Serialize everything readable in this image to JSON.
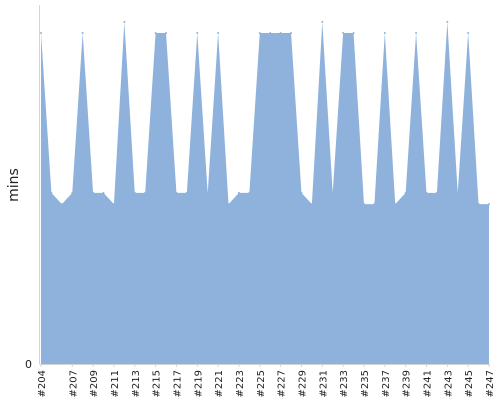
{
  "chart_data": {
    "type": "area",
    "title": "",
    "xlabel": "",
    "ylabel": "mins",
    "ylim": [
      0,
      6.4
    ],
    "yticks": [
      0
    ],
    "grid": false,
    "legend": "none",
    "color": "#8fb2dc",
    "x": [
      "#204",
      "#205",
      "#206",
      "#207",
      "#208",
      "#209",
      "#210",
      "#211",
      "#212",
      "#213",
      "#214",
      "#215",
      "#216",
      "#217",
      "#218",
      "#219",
      "#220",
      "#221",
      "#222",
      "#223",
      "#224",
      "#225",
      "#226",
      "#227",
      "#228",
      "#229",
      "#230",
      "#231",
      "#232",
      "#233",
      "#234",
      "#235",
      "#236",
      "#237",
      "#238",
      "#239",
      "#240",
      "#241",
      "#242",
      "#243",
      "#244",
      "#245",
      "#246",
      "#247"
    ],
    "xtick_labels": [
      "#204",
      "#207",
      "#209",
      "#211",
      "#213",
      "#215",
      "#217",
      "#219",
      "#221",
      "#223",
      "#225",
      "#227",
      "#229",
      "#231",
      "#233",
      "#235",
      "#237",
      "#239",
      "#241",
      "#243",
      "#245",
      "#247"
    ],
    "values": [
      5.9,
      3.05,
      2.85,
      3.05,
      5.9,
      3.05,
      3.05,
      2.85,
      6.1,
      3.05,
      3.05,
      5.9,
      5.9,
      3.05,
      3.05,
      5.9,
      3.05,
      5.9,
      2.85,
      3.05,
      3.05,
      5.9,
      5.9,
      5.9,
      5.9,
      3.05,
      2.85,
      6.1,
      3.05,
      5.9,
      5.9,
      2.85,
      2.85,
      5.9,
      2.85,
      3.05,
      5.9,
      3.05,
      3.05,
      6.1,
      3.05,
      5.9,
      2.85,
      2.85
    ]
  }
}
